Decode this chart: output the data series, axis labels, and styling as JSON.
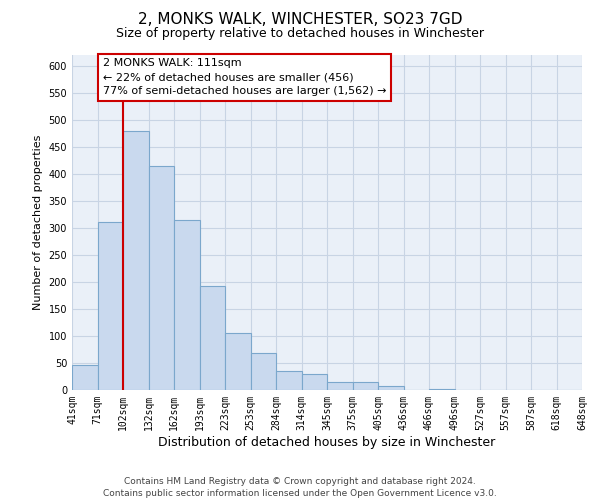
{
  "title": "2, MONKS WALK, WINCHESTER, SO23 7GD",
  "subtitle": "Size of property relative to detached houses in Winchester",
  "xlabel": "Distribution of detached houses by size in Winchester",
  "ylabel": "Number of detached properties",
  "bin_labels": [
    "41sqm",
    "71sqm",
    "102sqm",
    "132sqm",
    "162sqm",
    "193sqm",
    "223sqm",
    "253sqm",
    "284sqm",
    "314sqm",
    "345sqm",
    "375sqm",
    "405sqm",
    "436sqm",
    "466sqm",
    "496sqm",
    "527sqm",
    "557sqm",
    "587sqm",
    "618sqm",
    "648sqm"
  ],
  "bar_heights": [
    47,
    311,
    480,
    414,
    314,
    192,
    105,
    69,
    36,
    30,
    14,
    15,
    8,
    0,
    1,
    0,
    0,
    0,
    0,
    0
  ],
  "bar_color": "#c9d9ee",
  "bar_edge_color": "#7ba7cc",
  "vline_x": 2,
  "vline_color": "#cc0000",
  "ylim": [
    0,
    620
  ],
  "yticks": [
    0,
    50,
    100,
    150,
    200,
    250,
    300,
    350,
    400,
    450,
    500,
    550,
    600
  ],
  "annotation_title": "2 MONKS WALK: 111sqm",
  "annotation_line1": "← 22% of detached houses are smaller (456)",
  "annotation_line2": "77% of semi-detached houses are larger (1,562) →",
  "annotation_box_color": "#ffffff",
  "annotation_box_edge": "#cc0000",
  "plot_bg_color": "#eaf0f8",
  "grid_color": "#c8d4e4",
  "footer_line1": "Contains HM Land Registry data © Crown copyright and database right 2024.",
  "footer_line2": "Contains public sector information licensed under the Open Government Licence v3.0.",
  "title_fontsize": 11,
  "subtitle_fontsize": 9,
  "xlabel_fontsize": 9,
  "ylabel_fontsize": 8,
  "tick_fontsize": 7,
  "annotation_fontsize": 8,
  "footer_fontsize": 6.5
}
